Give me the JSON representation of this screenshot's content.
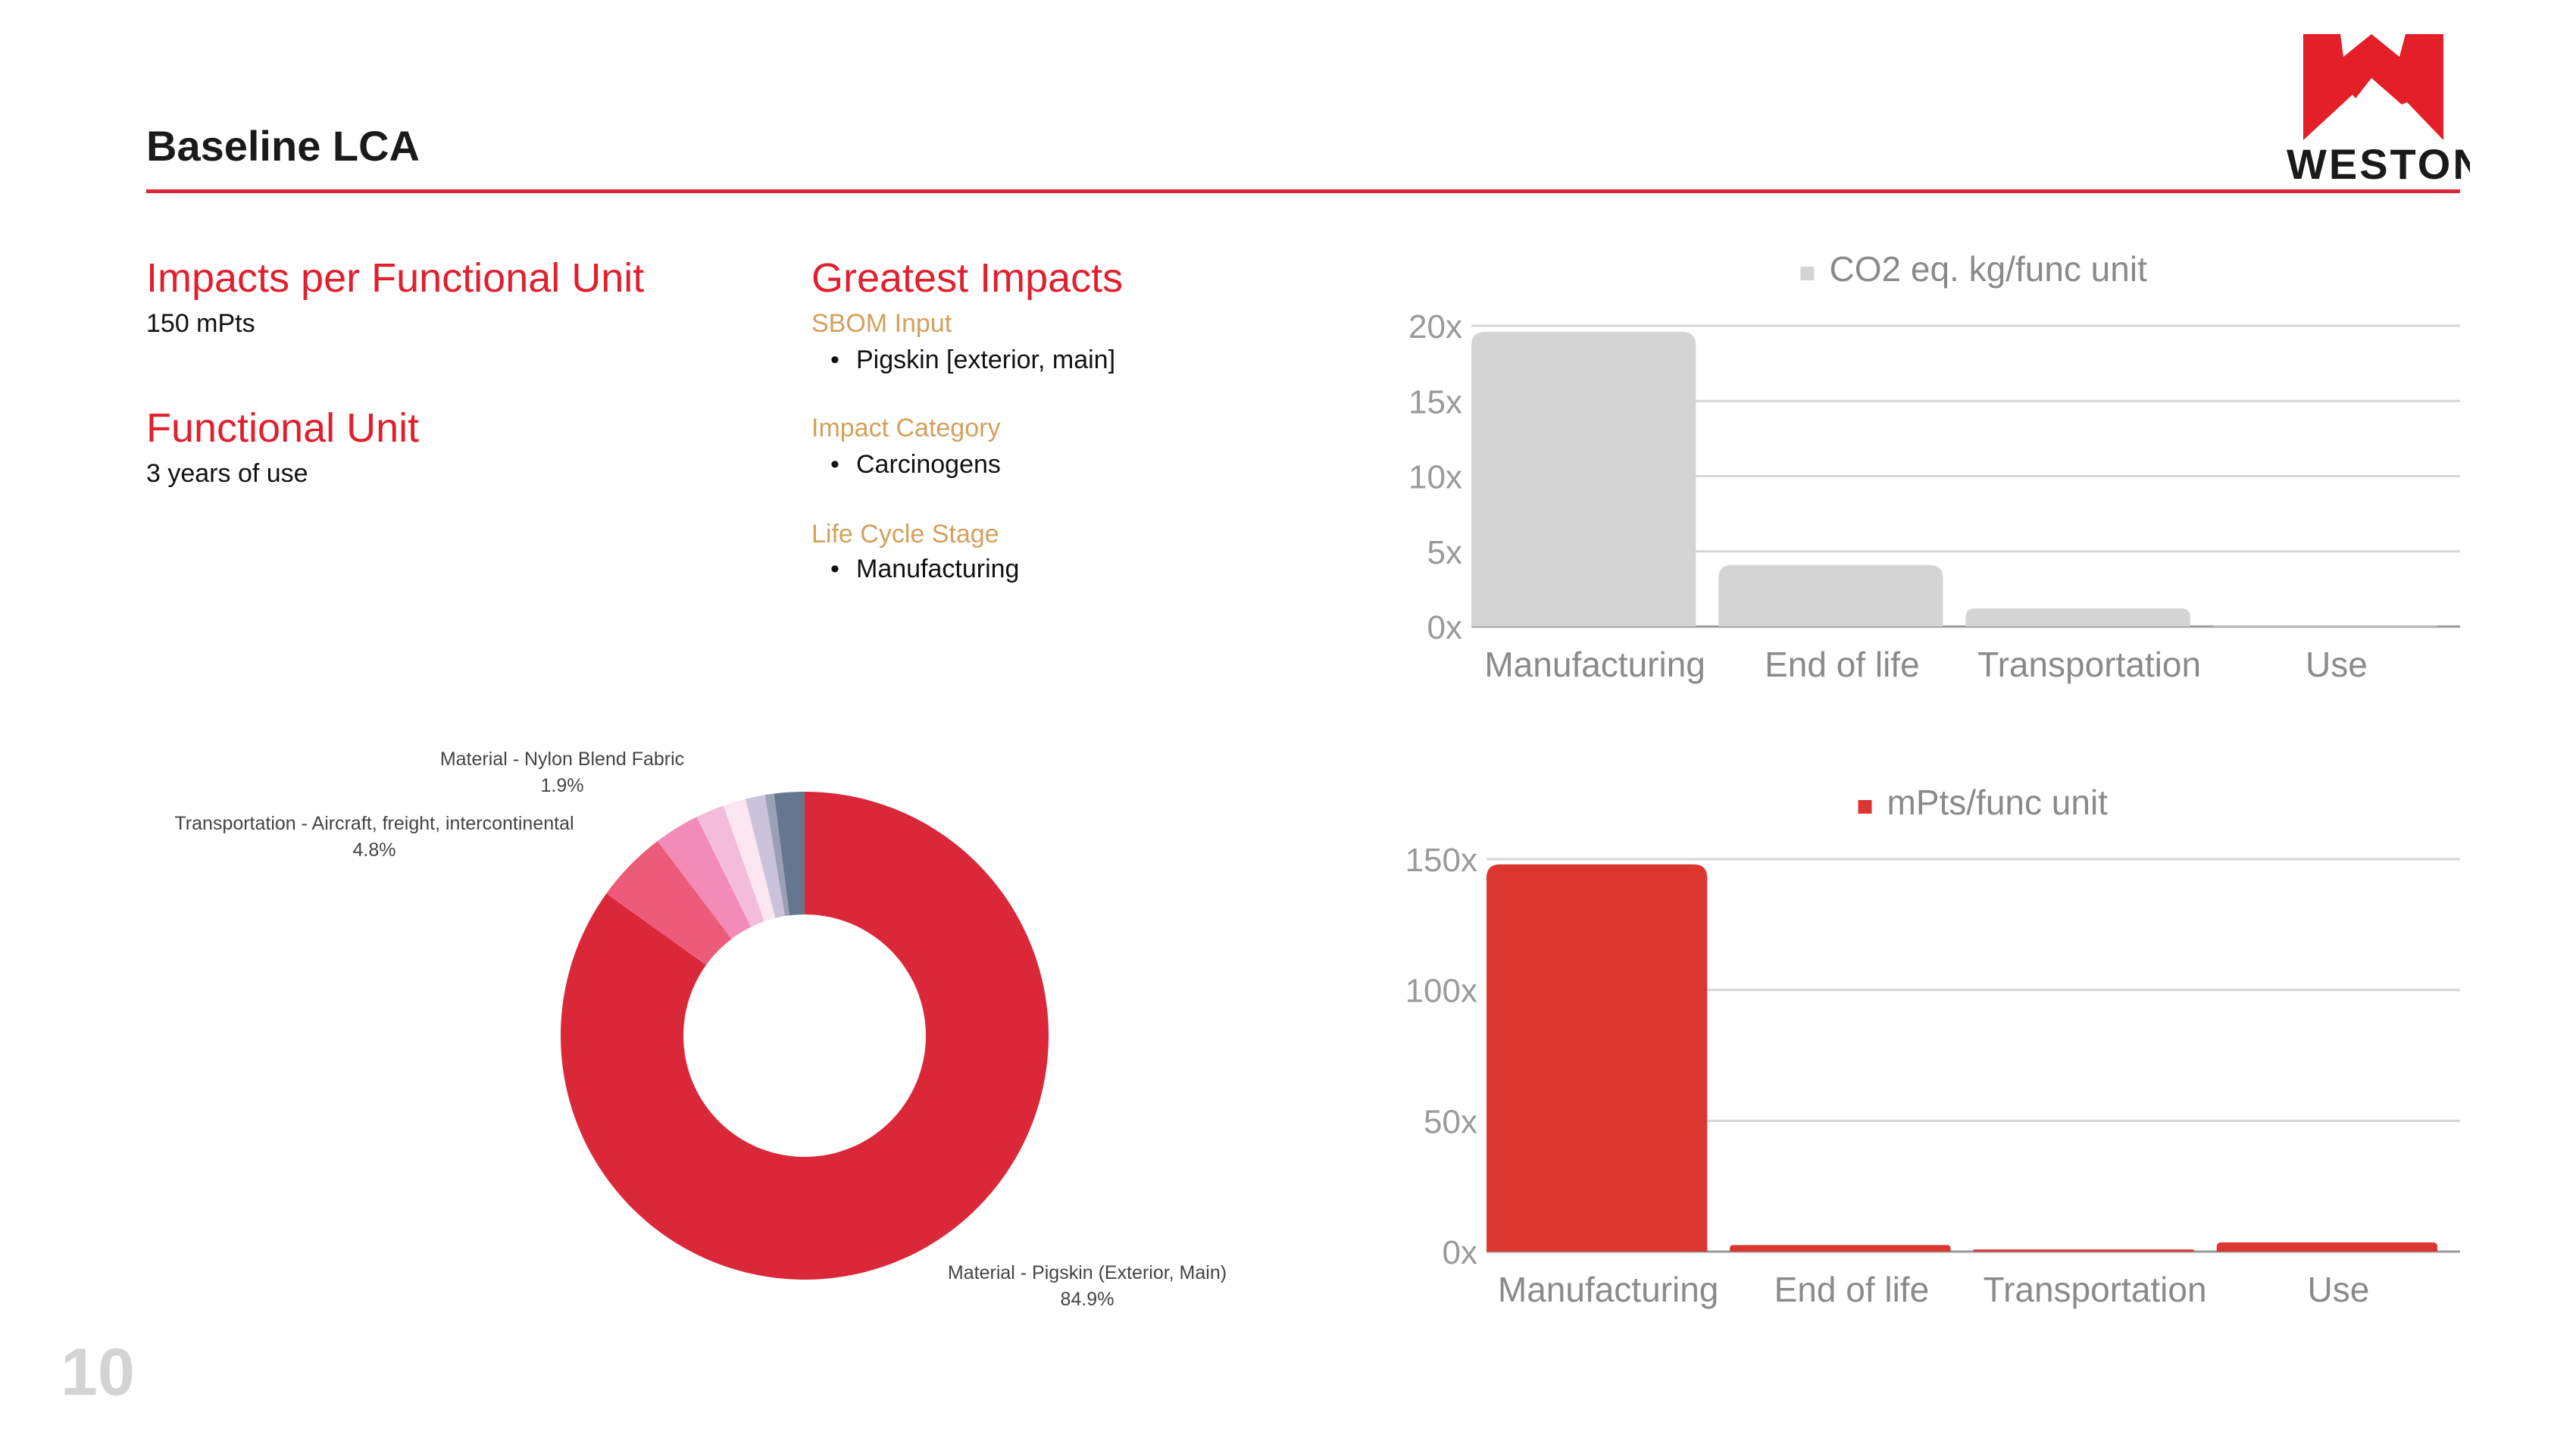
{
  "header": {
    "title": "Baseline LCA",
    "logo_text": "WESTON"
  },
  "page_number": "10",
  "left": {
    "impacts_heading": "Impacts per Functional Unit",
    "impacts_value": "150 mPts",
    "fu_heading": "Functional Unit",
    "fu_value": "3 years of use"
  },
  "greatest": {
    "heading": "Greatest Impacts",
    "sections": [
      {
        "label": "SBOM Input",
        "item": "Pigskin [exterior, main]"
      },
      {
        "label": "Impact Category",
        "item": "Carcinogens"
      },
      {
        "label": "Life Cycle Stage",
        "item": "Manufacturing"
      }
    ]
  },
  "colors": {
    "accent": "#e0202e",
    "tan": "#d4a05c",
    "gray_bar": "#d4d4d4",
    "red_bar": "#db3630"
  },
  "chart_data": [
    {
      "type": "bar",
      "title": "",
      "legend": "CO2 eq. kg/func unit",
      "legend_position": "top-center",
      "categories": [
        "Manufacturing",
        "End of life",
        "Transportation",
        "Use"
      ],
      "values": [
        19.6,
        4.1,
        1.2,
        0.1
      ],
      "ylim": [
        0,
        20
      ],
      "yticks": [
        "0x",
        "5x",
        "10x",
        "15x",
        "20x"
      ],
      "ytick_values": [
        0,
        5,
        10,
        15,
        20
      ],
      "grid": true,
      "color": "#d4d4d4"
    },
    {
      "type": "bar",
      "title": "",
      "legend": "mPts/func unit",
      "legend_position": "top-center",
      "categories": [
        "Manufacturing",
        "End of life",
        "Transportation",
        "Use"
      ],
      "values": [
        148,
        2.5,
        0.8,
        3.5
      ],
      "ylim": [
        0,
        150
      ],
      "yticks": [
        "0x",
        "50x",
        "100x",
        "150x"
      ],
      "ytick_values": [
        0,
        50,
        100,
        150
      ],
      "grid": true,
      "color": "#db3630"
    },
    {
      "type": "pie",
      "donut": true,
      "slices": [
        {
          "label": "Material - Pigskin (Exterior, Main)",
          "pct_label": "84.9%",
          "value": 84.9,
          "color": "#da2839"
        },
        {
          "label": "Transportation - Aircraft, freight, intercontinental",
          "pct_label": "4.8%",
          "value": 4.8,
          "color": "#ec5b79"
        },
        {
          "label": "",
          "value": 3.0,
          "color": "#f28bb5"
        },
        {
          "label": "Material - Nylon Blend Fabric",
          "pct_label": "1.9%",
          "value": 1.9,
          "color": "#f3bcd8"
        },
        {
          "label": "",
          "value": 1.5,
          "color": "#fce6f0"
        },
        {
          "label": "",
          "value": 1.3,
          "color": "#cbc2dc"
        },
        {
          "label": "",
          "value": 0.6,
          "color": "#9aa0b6"
        },
        {
          "label": "",
          "value": 2.0,
          "color": "#65778e"
        }
      ]
    }
  ]
}
